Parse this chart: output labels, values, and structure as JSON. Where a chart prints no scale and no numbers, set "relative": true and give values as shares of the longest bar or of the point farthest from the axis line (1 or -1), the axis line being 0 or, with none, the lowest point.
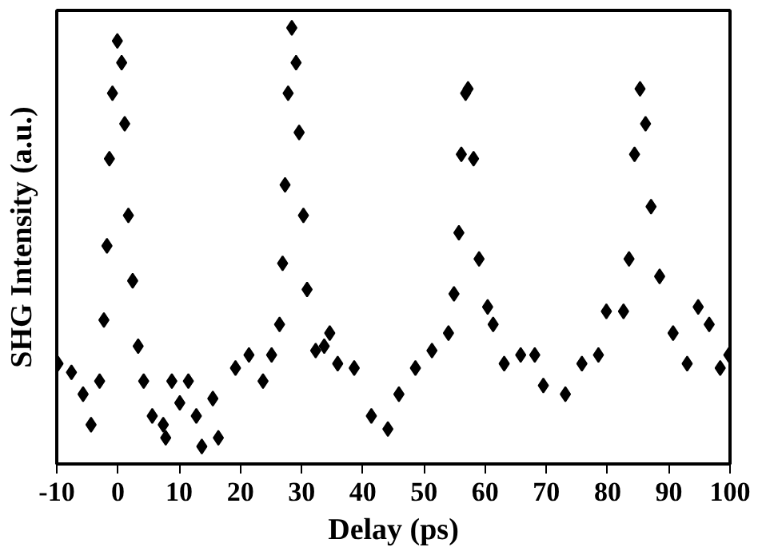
{
  "chart_data": {
    "type": "scatter",
    "xlabel": "Delay (ps)",
    "ylabel": "SHG Intensity (a.u.)",
    "relative": true,
    "marker": "diamond",
    "xlim": [
      -10,
      100
    ],
    "xticks": [
      -10,
      0,
      10,
      20,
      30,
      40,
      50,
      60,
      70,
      80,
      90,
      100
    ],
    "series": [
      {
        "color": "#000000",
        "x": [
          -9.8,
          -7.6,
          -5.7,
          -4.4,
          -3.0,
          -2.3,
          -1.8,
          -1.4,
          -0.9,
          -0.1,
          0.6,
          1.1,
          1.7,
          2.4,
          3.3,
          4.2,
          5.6,
          7.4,
          7.8,
          8.8,
          10.1,
          11.5,
          12.8,
          13.7,
          15.5,
          16.4,
          19.2,
          21.4,
          23.7,
          25.1,
          26.4,
          26.9,
          27.3,
          27.8,
          28.4,
          29.1,
          29.6,
          30.3,
          30.9,
          32.3,
          33.7,
          34.6,
          35.9,
          38.6,
          41.4,
          44.1,
          45.9,
          48.6,
          51.3,
          54.0,
          54.9,
          55.7,
          56.1,
          56.8,
          57.2,
          58.1,
          59.0,
          60.4,
          61.3,
          63.1,
          65.8,
          68.1,
          69.5,
          73.1,
          75.8,
          78.5,
          79.8,
          82.6,
          83.5,
          84.4,
          85.3,
          86.2,
          87.1,
          88.5,
          90.7,
          93.0,
          94.8,
          96.6,
          98.4,
          99.8
        ],
        "values": [
          0.23,
          0.21,
          0.16,
          0.09,
          0.19,
          0.33,
          0.5,
          0.7,
          0.85,
          0.97,
          0.92,
          0.78,
          0.57,
          0.42,
          0.27,
          0.19,
          0.11,
          0.09,
          0.06,
          0.19,
          0.14,
          0.19,
          0.11,
          0.04,
          0.15,
          0.06,
          0.22,
          0.25,
          0.19,
          0.25,
          0.32,
          0.46,
          0.64,
          0.85,
          1,
          0.92,
          0.76,
          0.57,
          0.4,
          0.26,
          0.27,
          0.3,
          0.23,
          0.22,
          0.11,
          0.08,
          0.16,
          0.22,
          0.26,
          0.3,
          0.39,
          0.53,
          0.71,
          0.85,
          0.86,
          0.7,
          0.47,
          0.36,
          0.32,
          0.23,
          0.25,
          0.25,
          0.18,
          0.16,
          0.23,
          0.25,
          0.35,
          0.35,
          0.47,
          0.71,
          0.86,
          0.78,
          0.59,
          0.43,
          0.3,
          0.23,
          0.36,
          0.32,
          0.22,
          0.25
        ]
      }
    ]
  }
}
